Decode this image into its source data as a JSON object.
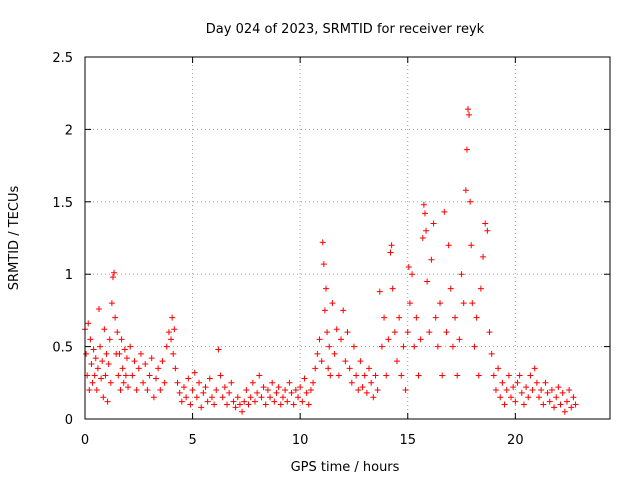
{
  "chart_data": {
    "type": "scatter",
    "title": "Day 024 of 2023, SRMTID for receiver reyk",
    "xlabel": "GPS time / hours",
    "ylabel": "SRMTID / TECUs",
    "xlim": [
      0,
      24.4
    ],
    "ylim": [
      0,
      2.5
    ],
    "xticks": [
      0,
      5,
      10,
      15,
      20
    ],
    "xtick_labels": [
      "0",
      "5",
      "10",
      "15",
      "20"
    ],
    "yticks": [
      0,
      0.5,
      1,
      1.5,
      2,
      2.5
    ],
    "ytick_labels": [
      "0",
      "0.5",
      "1",
      "1.5",
      "2",
      "2.5"
    ],
    "grid": true,
    "marker": "+",
    "color": "#ff0000",
    "series": [
      {
        "name": "SRMTID",
        "points": [
          [
            0.0,
            0.62
          ],
          [
            0.05,
            0.45
          ],
          [
            0.1,
            0.3
          ],
          [
            0.15,
            0.66
          ],
          [
            0.2,
            0.2
          ],
          [
            0.25,
            0.55
          ],
          [
            0.3,
            0.38
          ],
          [
            0.35,
            0.25
          ],
          [
            0.4,
            0.48
          ],
          [
            0.45,
            0.3
          ],
          [
            0.5,
            0.42
          ],
          [
            0.55,
            0.2
          ],
          [
            0.6,
            0.35
          ],
          [
            0.65,
            0.76
          ],
          [
            0.7,
            0.5
          ],
          [
            0.75,
            0.28
          ],
          [
            0.8,
            0.4
          ],
          [
            0.85,
            0.15
          ],
          [
            0.9,
            0.62
          ],
          [
            0.95,
            0.3
          ],
          [
            1.0,
            0.45
          ],
          [
            1.05,
            0.12
          ],
          [
            1.1,
            0.38
          ],
          [
            1.15,
            0.55
          ],
          [
            1.2,
            0.25
          ],
          [
            1.25,
            0.8
          ],
          [
            1.3,
            0.98
          ],
          [
            1.35,
            1.01
          ],
          [
            1.4,
            0.7
          ],
          [
            1.45,
            0.45
          ],
          [
            1.5,
            0.6
          ],
          [
            1.55,
            0.3
          ],
          [
            1.6,
            0.45
          ],
          [
            1.65,
            0.2
          ],
          [
            1.7,
            0.55
          ],
          [
            1.75,
            0.35
          ],
          [
            1.8,
            0.25
          ],
          [
            1.85,
            0.48
          ],
          [
            1.9,
            0.3
          ],
          [
            1.95,
            0.42
          ],
          [
            2.0,
            0.22
          ],
          [
            2.1,
            0.5
          ],
          [
            2.2,
            0.3
          ],
          [
            2.3,
            0.4
          ],
          [
            2.4,
            0.2
          ],
          [
            2.5,
            0.35
          ],
          [
            2.6,
            0.45
          ],
          [
            2.7,
            0.25
          ],
          [
            2.8,
            0.38
          ],
          [
            2.9,
            0.2
          ],
          [
            3.0,
            0.3
          ],
          [
            3.1,
            0.42
          ],
          [
            3.2,
            0.15
          ],
          [
            3.3,
            0.28
          ],
          [
            3.4,
            0.35
          ],
          [
            3.5,
            0.2
          ],
          [
            3.6,
            0.4
          ],
          [
            3.7,
            0.25
          ],
          [
            3.8,
            0.5
          ],
          [
            3.9,
            0.6
          ],
          [
            4.0,
            0.55
          ],
          [
            4.05,
            0.7
          ],
          [
            4.1,
            0.45
          ],
          [
            4.15,
            0.62
          ],
          [
            4.2,
            0.35
          ],
          [
            4.3,
            0.25
          ],
          [
            4.4,
            0.18
          ],
          [
            4.5,
            0.12
          ],
          [
            4.6,
            0.22
          ],
          [
            4.7,
            0.15
          ],
          [
            4.8,
            0.28
          ],
          [
            4.9,
            0.1
          ],
          [
            5.0,
            0.2
          ],
          [
            5.1,
            0.32
          ],
          [
            5.2,
            0.15
          ],
          [
            5.3,
            0.25
          ],
          [
            5.4,
            0.08
          ],
          [
            5.5,
            0.18
          ],
          [
            5.6,
            0.22
          ],
          [
            5.7,
            0.12
          ],
          [
            5.8,
            0.28
          ],
          [
            5.9,
            0.15
          ],
          [
            6.0,
            0.1
          ],
          [
            6.1,
            0.2
          ],
          [
            6.2,
            0.48
          ],
          [
            6.3,
            0.3
          ],
          [
            6.4,
            0.15
          ],
          [
            6.5,
            0.22
          ],
          [
            6.6,
            0.1
          ],
          [
            6.7,
            0.18
          ],
          [
            6.8,
            0.25
          ],
          [
            6.9,
            0.12
          ],
          [
            7.0,
            0.08
          ],
          [
            7.1,
            0.15
          ],
          [
            7.2,
            0.1
          ],
          [
            7.3,
            0.05
          ],
          [
            7.4,
            0.12
          ],
          [
            7.5,
            0.2
          ],
          [
            7.6,
            0.1
          ],
          [
            7.7,
            0.15
          ],
          [
            7.8,
            0.25
          ],
          [
            7.9,
            0.12
          ],
          [
            8.0,
            0.18
          ],
          [
            8.1,
            0.3
          ],
          [
            8.2,
            0.15
          ],
          [
            8.3,
            0.22
          ],
          [
            8.4,
            0.1
          ],
          [
            8.5,
            0.2
          ],
          [
            8.6,
            0.15
          ],
          [
            8.7,
            0.25
          ],
          [
            8.8,
            0.12
          ],
          [
            8.9,
            0.18
          ],
          [
            9.0,
            0.22
          ],
          [
            9.1,
            0.1
          ],
          [
            9.2,
            0.15
          ],
          [
            9.3,
            0.2
          ],
          [
            9.4,
            0.12
          ],
          [
            9.5,
            0.25
          ],
          [
            9.6,
            0.18
          ],
          [
            9.7,
            0.1
          ],
          [
            9.8,
            0.2
          ],
          [
            9.9,
            0.15
          ],
          [
            10.0,
            0.22
          ],
          [
            10.1,
            0.12
          ],
          [
            10.2,
            0.28
          ],
          [
            10.3,
            0.18
          ],
          [
            10.4,
            0.1
          ],
          [
            10.5,
            0.2
          ],
          [
            10.6,
            0.25
          ],
          [
            10.7,
            0.35
          ],
          [
            10.8,
            0.45
          ],
          [
            10.9,
            0.55
          ],
          [
            11.0,
            0.4
          ],
          [
            11.05,
            1.22
          ],
          [
            11.1,
            1.07
          ],
          [
            11.15,
            0.75
          ],
          [
            11.2,
            0.9
          ],
          [
            11.25,
            0.6
          ],
          [
            11.3,
            0.35
          ],
          [
            11.35,
            0.5
          ],
          [
            11.4,
            0.3
          ],
          [
            11.5,
            0.8
          ],
          [
            11.6,
            0.45
          ],
          [
            11.7,
            0.62
          ],
          [
            11.8,
            0.3
          ],
          [
            11.9,
            0.55
          ],
          [
            12.0,
            0.75
          ],
          [
            12.1,
            0.4
          ],
          [
            12.2,
            0.6
          ],
          [
            12.3,
            0.35
          ],
          [
            12.4,
            0.25
          ],
          [
            12.5,
            0.5
          ],
          [
            12.6,
            0.3
          ],
          [
            12.7,
            0.2
          ],
          [
            12.8,
            0.4
          ],
          [
            12.9,
            0.22
          ],
          [
            13.0,
            0.3
          ],
          [
            13.1,
            0.18
          ],
          [
            13.2,
            0.35
          ],
          [
            13.3,
            0.25
          ],
          [
            13.4,
            0.15
          ],
          [
            13.5,
            0.3
          ],
          [
            13.6,
            0.2
          ],
          [
            13.7,
            0.88
          ],
          [
            13.8,
            0.5
          ],
          [
            13.9,
            0.7
          ],
          [
            14.0,
            0.3
          ],
          [
            14.1,
            0.55
          ],
          [
            14.2,
            1.15
          ],
          [
            14.25,
            1.2
          ],
          [
            14.3,
            0.9
          ],
          [
            14.4,
            0.6
          ],
          [
            14.5,
            0.4
          ],
          [
            14.6,
            0.7
          ],
          [
            14.7,
            0.3
          ],
          [
            14.8,
            0.5
          ],
          [
            14.9,
            0.2
          ],
          [
            15.0,
            0.6
          ],
          [
            15.05,
            1.05
          ],
          [
            15.1,
            0.8
          ],
          [
            15.2,
            1.0
          ],
          [
            15.3,
            0.5
          ],
          [
            15.4,
            0.7
          ],
          [
            15.5,
            0.3
          ],
          [
            15.6,
            0.55
          ],
          [
            15.7,
            1.25
          ],
          [
            15.75,
            1.48
          ],
          [
            15.8,
            1.42
          ],
          [
            15.85,
            1.3
          ],
          [
            15.9,
            0.95
          ],
          [
            16.0,
            0.6
          ],
          [
            16.1,
            1.1
          ],
          [
            16.2,
            1.35
          ],
          [
            16.3,
            0.7
          ],
          [
            16.4,
            0.5
          ],
          [
            16.5,
            0.8
          ],
          [
            16.6,
            0.3
          ],
          [
            16.7,
            1.43
          ],
          [
            16.8,
            0.6
          ],
          [
            16.9,
            1.2
          ],
          [
            17.0,
            0.9
          ],
          [
            17.1,
            0.5
          ],
          [
            17.2,
            0.7
          ],
          [
            17.3,
            0.3
          ],
          [
            17.4,
            0.55
          ],
          [
            17.5,
            1.0
          ],
          [
            17.6,
            0.8
          ],
          [
            17.7,
            1.58
          ],
          [
            17.75,
            1.86
          ],
          [
            17.8,
            2.14
          ],
          [
            17.85,
            2.1
          ],
          [
            17.9,
            1.5
          ],
          [
            17.95,
            1.2
          ],
          [
            18.0,
            0.8
          ],
          [
            18.1,
            0.5
          ],
          [
            18.2,
            0.7
          ],
          [
            18.3,
            0.3
          ],
          [
            18.4,
            0.9
          ],
          [
            18.5,
            1.12
          ],
          [
            18.6,
            1.35
          ],
          [
            18.7,
            1.3
          ],
          [
            18.8,
            0.6
          ],
          [
            18.9,
            0.45
          ],
          [
            19.0,
            0.3
          ],
          [
            19.1,
            0.2
          ],
          [
            19.2,
            0.35
          ],
          [
            19.3,
            0.15
          ],
          [
            19.4,
            0.25
          ],
          [
            19.5,
            0.1
          ],
          [
            19.6,
            0.2
          ],
          [
            19.7,
            0.3
          ],
          [
            19.8,
            0.15
          ],
          [
            19.9,
            0.22
          ],
          [
            20.0,
            0.12
          ],
          [
            20.1,
            0.25
          ],
          [
            20.2,
            0.3
          ],
          [
            20.3,
            0.18
          ],
          [
            20.4,
            0.1
          ],
          [
            20.5,
            0.22
          ],
          [
            20.6,
            0.15
          ],
          [
            20.7,
            0.3
          ],
          [
            20.8,
            0.2
          ],
          [
            20.9,
            0.35
          ],
          [
            21.0,
            0.25
          ],
          [
            21.1,
            0.15
          ],
          [
            21.2,
            0.2
          ],
          [
            21.3,
            0.1
          ],
          [
            21.4,
            0.25
          ],
          [
            21.5,
            0.18
          ],
          [
            21.6,
            0.12
          ],
          [
            21.7,
            0.2
          ],
          [
            21.8,
            0.08
          ],
          [
            21.9,
            0.15
          ],
          [
            22.0,
            0.22
          ],
          [
            22.1,
            0.1
          ],
          [
            22.2,
            0.18
          ],
          [
            22.3,
            0.05
          ],
          [
            22.4,
            0.12
          ],
          [
            22.5,
            0.2
          ],
          [
            22.6,
            0.08
          ],
          [
            22.7,
            0.15
          ],
          [
            22.8,
            0.1
          ]
        ]
      }
    ]
  }
}
